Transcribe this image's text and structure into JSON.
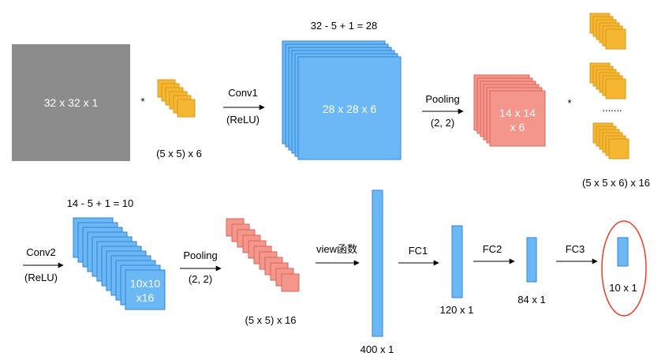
{
  "colors": {
    "input_gray": "#8c8c8c",
    "kernel_yellow": "#f5b731",
    "kernel_stroke": "#d99a1a",
    "feature_blue": "#6cb8f6",
    "feature_stroke": "#2f83d6",
    "pool_salmon": "#f4968b",
    "pool_stroke": "#d9675b",
    "highlight_red": "#e0402a"
  },
  "row1": {
    "input_label": "32 x 32 x 1",
    "multiply1": "*",
    "kernel1_label": "(5 x 5) x 6",
    "conv1_label": "Conv1",
    "conv1_act": "(ReLU)",
    "conv1_formula": "32 - 5 + 1 = 28",
    "fmap1_label": "28 x 28 x 6",
    "pool1_label": "Pooling",
    "pool1_size": "(2, 2)",
    "pool1_line1": "14 x 14",
    "pool1_line2": "x 6",
    "multiply2": "*",
    "kernel2_dots": ".......",
    "kernel2_label": "(5 x 5 x 6) x 16"
  },
  "row2": {
    "conv2_formula": "14 - 5 + 1 = 10",
    "conv2_label": "Conv2",
    "conv2_act": "(ReLU)",
    "fmap2_line1": "10x10",
    "fmap2_line2": "x16",
    "pool2_label": "Pooling",
    "pool2_size": "(2, 2)",
    "pool2_out_label": "(5 x 5) x 16",
    "view_label": "view函数",
    "flat_label": "400 x 1",
    "fc1_label": "FC1",
    "fc1_out_label": "120 x 1",
    "fc2_label": "FC2",
    "fc2_out_label": "84 x 1",
    "fc3_label": "FC3",
    "output_label": "10 x 1"
  }
}
